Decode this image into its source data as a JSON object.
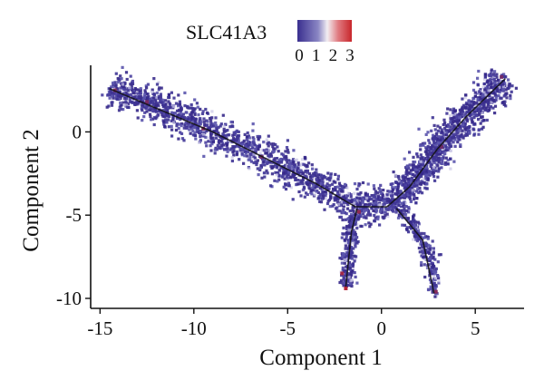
{
  "chart_data": {
    "type": "scatter",
    "title": "",
    "xlabel": "Component 1",
    "ylabel": "Component 2",
    "xlim": [
      -15.5,
      7.6
    ],
    "ylim": [
      -10.6,
      4.0
    ],
    "xticks": [
      -15,
      -10,
      -5,
      0,
      5
    ],
    "yticks": [
      0,
      -5,
      -10
    ],
    "xtick_labels": [
      "-15",
      "-10",
      "-5",
      "0",
      "5"
    ],
    "ytick_labels": [
      "0",
      "-5",
      "-10"
    ],
    "grid": false,
    "legend": {
      "title": "SLC41A3",
      "placement": "top-center",
      "colorbar_ticks": [
        "0",
        "1",
        "2",
        "3"
      ],
      "colormap": [
        "#3a2f8f",
        "#ffffff",
        "#c8262b"
      ]
    },
    "point_color": "#3b2e8c",
    "trajectory_color": "#111111",
    "branches": [
      {
        "name": "branch-1",
        "path": [
          [
            -14.5,
            2.6
          ],
          [
            -12,
            1.6
          ],
          [
            -9,
            0.0
          ],
          [
            -6,
            -1.6
          ],
          [
            -3.5,
            -3.1
          ],
          [
            -1.7,
            -4.4
          ],
          [
            0.3,
            -4.55
          ]
        ],
        "width": 0.85,
        "n": 1500
      },
      {
        "name": "branch-2",
        "path": [
          [
            0.3,
            -4.4
          ],
          [
            1.5,
            -3.3
          ],
          [
            3,
            -1.0
          ],
          [
            4.5,
            0.9
          ],
          [
            5.8,
            2.3
          ],
          [
            6.6,
            3.2
          ]
        ],
        "width": 0.75,
        "n": 1300
      },
      {
        "name": "branch-3",
        "path": [
          [
            -1.4,
            -4.8
          ],
          [
            -1.6,
            -6.0
          ],
          [
            -1.7,
            -7.5
          ],
          [
            -1.9,
            -9.3
          ]
        ],
        "width": 0.3,
        "n": 260
      },
      {
        "name": "branch-4",
        "path": [
          [
            1.0,
            -4.7
          ],
          [
            2.2,
            -6.5
          ],
          [
            2.8,
            -8.2
          ],
          [
            2.8,
            -9.7
          ]
        ],
        "width": 0.25,
        "n": 240
      }
    ],
    "trajectory": [
      [
        [
          -14.5,
          2.6
        ],
        [
          -9,
          0.0
        ],
        [
          -3.5,
          -3.1
        ],
        [
          -1.4,
          -4.5
        ],
        [
          0.3,
          -4.5
        ]
      ],
      [
        [
          0.3,
          -4.5
        ],
        [
          1.5,
          -3.3
        ],
        [
          3,
          -1.0
        ],
        [
          4.5,
          0.9
        ],
        [
          6.6,
          3.2
        ]
      ],
      [
        [
          -1.3,
          -4.6
        ],
        [
          -1.6,
          -6.0
        ],
        [
          -1.9,
          -9.3
        ]
      ],
      [
        [
          0.8,
          -4.6
        ],
        [
          2.2,
          -6.5
        ],
        [
          2.8,
          -9.7
        ]
      ]
    ],
    "highlight_points": [
      {
        "x": -1.9,
        "y": -9.4,
        "expr": 2.6
      },
      {
        "x": -2.1,
        "y": -8.5,
        "expr": 2.2
      },
      {
        "x": 2.9,
        "y": -9.6,
        "expr": 1.6
      },
      {
        "x": -14.2,
        "y": 2.5,
        "expr": 1.4
      },
      {
        "x": 6.4,
        "y": 3.3,
        "expr": 1.2
      },
      {
        "x": -9.5,
        "y": 0.2,
        "expr": 1.5
      },
      {
        "x": -1.2,
        "y": -4.8,
        "expr": 1.8
      },
      {
        "x": -12.5,
        "y": 1.8,
        "expr": 1.3
      },
      {
        "x": 3.2,
        "y": -0.9,
        "expr": 1.1
      },
      {
        "x": -6.4,
        "y": -1.5,
        "expr": 1.2
      }
    ]
  }
}
